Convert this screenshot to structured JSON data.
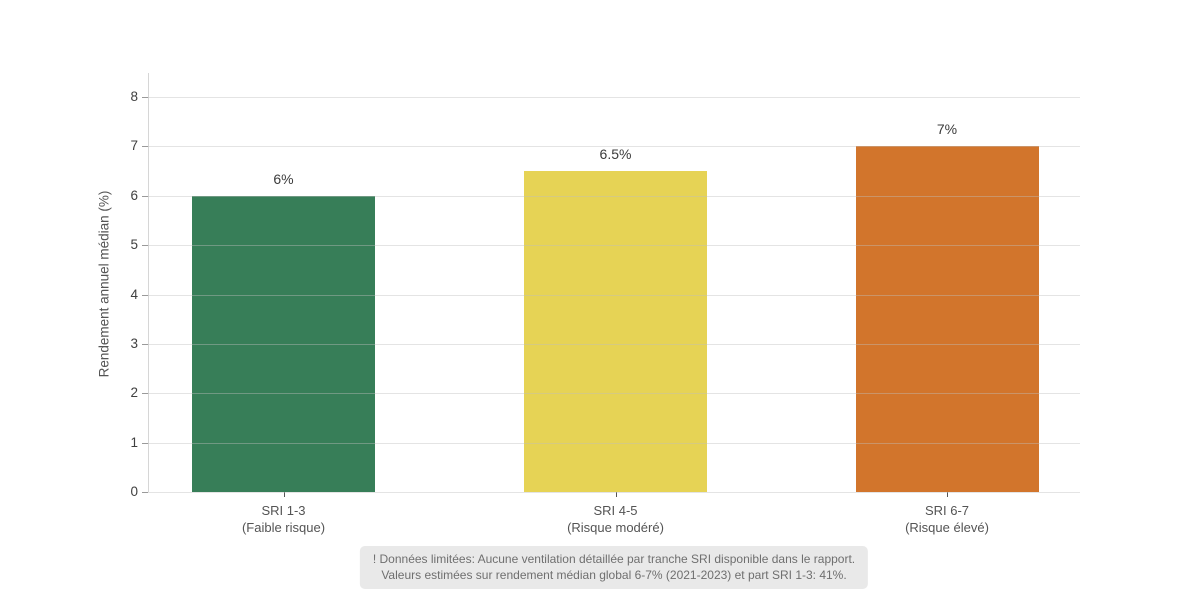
{
  "chart_data": {
    "type": "bar",
    "title": "",
    "xlabel": "",
    "ylabel": "Rendement annuel médian (%)",
    "ylim": [
      0,
      8
    ],
    "yticks": [
      0,
      1,
      2,
      3,
      4,
      5,
      6,
      7,
      8
    ],
    "grid": true,
    "legend": false,
    "categories": [
      "SRI 1-3 (Faible risque)",
      "SRI 4-5 (Risque modéré)",
      "SRI 6-7 (Risque élevé)"
    ],
    "category_lines": [
      [
        "SRI 1-3",
        "(Faible risque)"
      ],
      [
        "SRI 4-5",
        "(Risque modéré)"
      ],
      [
        "SRI 6-7",
        "(Risque élevé)"
      ]
    ],
    "values": [
      6,
      6.5,
      7
    ],
    "value_labels": [
      "6%",
      "6.5%",
      "7%"
    ],
    "bar_colors": [
      "#377E58",
      "#E6D355",
      "#D2752C"
    ]
  },
  "note": {
    "line1": "! Données limitées: Aucune ventilation détaillée par tranche SRI disponible dans le rapport.",
    "line2": "Valeurs estimées sur rendement médian global 6-7% (2021-2023) et part SRI 1-3: 41%."
  },
  "colors": {
    "background": "#ffffff",
    "axis_line": "#d6d6d6",
    "grid_line_rgba": "rgba(190,190,190,0.42)",
    "tick_label": "#3f3f3f",
    "axis_title": "#555555",
    "value_label": "#3b3b3b",
    "x_label": "#545454",
    "note_bg": "#e9e9e9",
    "note_text": "#6f6f6f"
  }
}
